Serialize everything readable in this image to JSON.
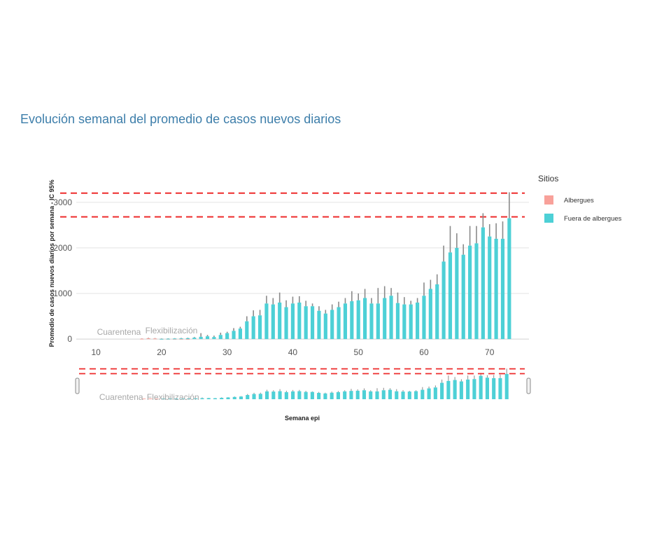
{
  "chart_data": {
    "type": "bar",
    "title": "Evolución semanal del promedio de casos nuevos diarios",
    "xlabel": "Semana epi",
    "ylabel": "Promedio de casos nuevos diarios por semana - IC 95%",
    "xlim": [
      7,
      76
    ],
    "ylim": [
      -60,
      3320
    ],
    "xticks": [
      10,
      20,
      30,
      40,
      50,
      60,
      70
    ],
    "yticks": [
      0,
      1000,
      2000,
      3000
    ],
    "grid": true,
    "legend": {
      "title": "Sitios",
      "position": "right",
      "entries": [
        {
          "name": "Albergues",
          "color": "#f8a19a"
        },
        {
          "name": "Fuera de albergues",
          "color": "#4dd0d6"
        }
      ]
    },
    "annotations": [
      {
        "text": "Cuarentena",
        "x": 13.5
      },
      {
        "text": "Flexibilización",
        "x": 21.5
      }
    ],
    "reference_lines": [
      2680,
      3200
    ],
    "range_slider": true,
    "series": [
      {
        "name": "Albergues",
        "color": "#f8a19a",
        "x": [
          17,
          18,
          19,
          20,
          21,
          22,
          23,
          24
        ],
        "values": [
          8,
          18,
          12,
          6,
          5,
          4,
          4,
          3
        ],
        "upper": [
          14,
          28,
          22,
          12,
          10,
          8,
          8,
          6
        ]
      },
      {
        "name": "Fuera de albergues",
        "color": "#4dd0d6",
        "x": [
          20,
          21,
          22,
          23,
          24,
          25,
          26,
          27,
          28,
          29,
          30,
          31,
          32,
          33,
          34,
          35,
          36,
          37,
          38,
          39,
          40,
          41,
          42,
          43,
          44,
          45,
          46,
          47,
          48,
          49,
          50,
          51,
          52,
          53,
          54,
          55,
          56,
          57,
          58,
          59,
          60,
          61,
          62,
          63,
          64,
          65,
          66,
          67,
          68,
          69,
          70,
          71,
          72,
          73
        ],
        "values": [
          5,
          8,
          12,
          15,
          20,
          30,
          50,
          60,
          45,
          90,
          130,
          180,
          230,
          390,
          500,
          520,
          780,
          760,
          800,
          700,
          780,
          800,
          720,
          720,
          620,
          560,
          640,
          700,
          780,
          830,
          850,
          900,
          780,
          780,
          900,
          950,
          790,
          760,
          760,
          800,
          950,
          1100,
          1200,
          1700,
          1900,
          2000,
          1850,
          2050,
          2100,
          2450,
          2250,
          2200,
          2200,
          2650
        ],
        "upper": [
          10,
          15,
          20,
          25,
          30,
          45,
          130,
          90,
          75,
          140,
          160,
          240,
          270,
          500,
          630,
          640,
          950,
          900,
          1020,
          850,
          930,
          940,
          840,
          780,
          720,
          640,
          760,
          820,
          900,
          1050,
          1000,
          1100,
          900,
          1120,
          1160,
          1120,
          1020,
          920,
          840,
          900,
          1240,
          1300,
          1420,
          2050,
          2480,
          2320,
          2080,
          2480,
          2480,
          2760,
          2520,
          2540,
          2580,
          3220
        ]
      }
    ]
  }
}
